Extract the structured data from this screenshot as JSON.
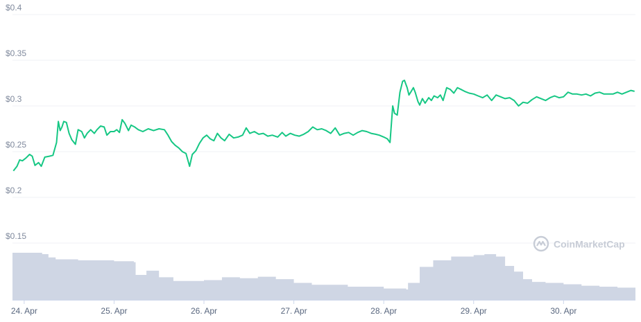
{
  "watermark": {
    "text": "CoinMarketCap"
  },
  "colors": {
    "price_line": "#16c784",
    "volume_fill": "#cfd6e4",
    "grid": "#eff2f5"
  },
  "chart_data": {
    "type": "line",
    "title": "",
    "xlabel": "",
    "ylabel": "",
    "ylim": [
      0.15,
      0.4
    ],
    "y_ticks": [
      {
        "value": 0.4,
        "label": "$0.4"
      },
      {
        "value": 0.35,
        "label": "$0.35"
      },
      {
        "value": 0.3,
        "label": "$0.3"
      },
      {
        "value": 0.25,
        "label": "$0.25"
      },
      {
        "value": 0.2,
        "label": "$0.2"
      },
      {
        "value": 0.15,
        "label": "$0.15"
      }
    ],
    "x_range": [
      23.87,
      30.8
    ],
    "x_ticks": [
      {
        "value": 24,
        "label": "24. Apr"
      },
      {
        "value": 25,
        "label": "25. Apr"
      },
      {
        "value": 26,
        "label": "26. Apr"
      },
      {
        "value": 27,
        "label": "27. Apr"
      },
      {
        "value": 28,
        "label": "28. Apr"
      },
      {
        "value": 29,
        "label": "29. Apr"
      },
      {
        "value": 30,
        "label": "30. Apr"
      }
    ],
    "grid": true,
    "series": [
      {
        "values": [
          [
            23.88,
            0.229
          ],
          [
            23.92,
            0.234
          ],
          [
            23.95,
            0.241
          ],
          [
            23.98,
            0.24
          ],
          [
            24.02,
            0.243
          ],
          [
            24.06,
            0.247
          ],
          [
            24.09,
            0.245
          ],
          [
            24.12,
            0.235
          ],
          [
            24.16,
            0.238
          ],
          [
            24.19,
            0.234
          ],
          [
            24.23,
            0.244
          ],
          [
            24.28,
            0.245
          ],
          [
            24.32,
            0.246
          ],
          [
            24.36,
            0.26
          ],
          [
            24.38,
            0.283
          ],
          [
            24.4,
            0.273
          ],
          [
            24.42,
            0.277
          ],
          [
            24.44,
            0.283
          ],
          [
            24.47,
            0.282
          ],
          [
            24.5,
            0.27
          ],
          [
            24.53,
            0.263
          ],
          [
            24.57,
            0.258
          ],
          [
            24.6,
            0.274
          ],
          [
            24.64,
            0.272
          ],
          [
            24.67,
            0.265
          ],
          [
            24.7,
            0.27
          ],
          [
            24.74,
            0.274
          ],
          [
            24.78,
            0.27
          ],
          [
            24.81,
            0.274
          ],
          [
            24.85,
            0.278
          ],
          [
            24.89,
            0.277
          ],
          [
            24.92,
            0.268
          ],
          [
            24.96,
            0.272
          ],
          [
            25.0,
            0.272
          ],
          [
            25.03,
            0.274
          ],
          [
            25.06,
            0.271
          ],
          [
            25.09,
            0.285
          ],
          [
            25.12,
            0.281
          ],
          [
            25.16,
            0.273
          ],
          [
            25.19,
            0.279
          ],
          [
            25.23,
            0.277
          ],
          [
            25.27,
            0.274
          ],
          [
            25.32,
            0.272
          ],
          [
            25.38,
            0.275
          ],
          [
            25.44,
            0.273
          ],
          [
            25.5,
            0.275
          ],
          [
            25.56,
            0.274
          ],
          [
            25.6,
            0.268
          ],
          [
            25.64,
            0.261
          ],
          [
            25.68,
            0.257
          ],
          [
            25.72,
            0.254
          ],
          [
            25.76,
            0.25
          ],
          [
            25.8,
            0.248
          ],
          [
            25.84,
            0.234
          ],
          [
            25.87,
            0.247
          ],
          [
            25.91,
            0.251
          ],
          [
            25.95,
            0.259
          ],
          [
            25.99,
            0.265
          ],
          [
            26.03,
            0.268
          ],
          [
            26.07,
            0.264
          ],
          [
            26.11,
            0.262
          ],
          [
            26.15,
            0.27
          ],
          [
            26.19,
            0.265
          ],
          [
            26.23,
            0.262
          ],
          [
            26.28,
            0.269
          ],
          [
            26.33,
            0.265
          ],
          [
            26.38,
            0.266
          ],
          [
            26.43,
            0.268
          ],
          [
            26.47,
            0.276
          ],
          [
            26.51,
            0.27
          ],
          [
            26.56,
            0.272
          ],
          [
            26.61,
            0.269
          ],
          [
            26.66,
            0.27
          ],
          [
            26.71,
            0.267
          ],
          [
            26.76,
            0.268
          ],
          [
            26.82,
            0.266
          ],
          [
            26.87,
            0.271
          ],
          [
            26.91,
            0.267
          ],
          [
            26.96,
            0.27
          ],
          [
            27.01,
            0.268
          ],
          [
            27.06,
            0.267
          ],
          [
            27.11,
            0.269
          ],
          [
            27.16,
            0.272
          ],
          [
            27.21,
            0.277
          ],
          [
            27.26,
            0.274
          ],
          [
            27.31,
            0.275
          ],
          [
            27.36,
            0.273
          ],
          [
            27.41,
            0.27
          ],
          [
            27.46,
            0.276
          ],
          [
            27.51,
            0.268
          ],
          [
            27.56,
            0.27
          ],
          [
            27.61,
            0.271
          ],
          [
            27.66,
            0.268
          ],
          [
            27.71,
            0.271
          ],
          [
            27.76,
            0.273
          ],
          [
            27.81,
            0.272
          ],
          [
            27.86,
            0.27
          ],
          [
            27.91,
            0.269
          ],
          [
            27.95,
            0.268
          ],
          [
            28.0,
            0.266
          ],
          [
            28.04,
            0.264
          ],
          [
            28.07,
            0.26
          ],
          [
            28.1,
            0.3
          ],
          [
            28.12,
            0.292
          ],
          [
            28.15,
            0.29
          ],
          [
            28.18,
            0.315
          ],
          [
            28.21,
            0.327
          ],
          [
            28.23,
            0.328
          ],
          [
            28.26,
            0.32
          ],
          [
            28.28,
            0.312
          ],
          [
            28.3,
            0.315
          ],
          [
            28.33,
            0.32
          ],
          [
            28.35,
            0.315
          ],
          [
            28.38,
            0.305
          ],
          [
            28.4,
            0.301
          ],
          [
            28.43,
            0.308
          ],
          [
            28.46,
            0.303
          ],
          [
            28.5,
            0.309
          ],
          [
            28.53,
            0.306
          ],
          [
            28.56,
            0.311
          ],
          [
            28.6,
            0.309
          ],
          [
            28.63,
            0.312
          ],
          [
            28.66,
            0.306
          ],
          [
            28.7,
            0.32
          ],
          [
            28.74,
            0.318
          ],
          [
            28.78,
            0.314
          ],
          [
            28.82,
            0.32
          ],
          [
            28.86,
            0.318
          ],
          [
            28.9,
            0.316
          ],
          [
            28.95,
            0.314
          ],
          [
            29.0,
            0.313
          ],
          [
            29.05,
            0.311
          ],
          [
            29.1,
            0.309
          ],
          [
            29.15,
            0.312
          ],
          [
            29.2,
            0.306
          ],
          [
            29.25,
            0.312
          ],
          [
            29.3,
            0.31
          ],
          [
            29.35,
            0.308
          ],
          [
            29.4,
            0.309
          ],
          [
            29.45,
            0.306
          ],
          [
            29.5,
            0.3
          ],
          [
            29.55,
            0.304
          ],
          [
            29.6,
            0.303
          ],
          [
            29.65,
            0.307
          ],
          [
            29.7,
            0.31
          ],
          [
            29.75,
            0.308
          ],
          [
            29.8,
            0.306
          ],
          [
            29.85,
            0.309
          ],
          [
            29.9,
            0.311
          ],
          [
            29.95,
            0.309
          ],
          [
            30.0,
            0.31
          ],
          [
            30.05,
            0.315
          ],
          [
            30.1,
            0.313
          ],
          [
            30.15,
            0.313
          ],
          [
            30.2,
            0.312
          ],
          [
            30.25,
            0.313
          ],
          [
            30.3,
            0.311
          ],
          [
            30.35,
            0.314
          ],
          [
            30.4,
            0.315
          ],
          [
            30.45,
            0.313
          ],
          [
            30.5,
            0.313
          ],
          [
            30.55,
            0.313
          ],
          [
            30.6,
            0.315
          ],
          [
            30.65,
            0.313
          ],
          [
            30.7,
            0.315
          ],
          [
            30.75,
            0.317
          ],
          [
            30.79,
            0.316
          ]
        ]
      }
    ],
    "volume": [
      [
        23.87,
        1.0
      ],
      [
        24.2,
        0.97
      ],
      [
        24.27,
        0.9
      ],
      [
        24.35,
        0.86
      ],
      [
        24.6,
        0.84
      ],
      [
        25.0,
        0.82
      ],
      [
        25.22,
        0.8
      ],
      [
        25.24,
        0.53
      ],
      [
        25.36,
        0.62
      ],
      [
        25.5,
        0.48
      ],
      [
        25.66,
        0.4
      ],
      [
        26.0,
        0.42
      ],
      [
        26.2,
        0.48
      ],
      [
        26.4,
        0.46
      ],
      [
        26.6,
        0.49
      ],
      [
        26.8,
        0.44
      ],
      [
        27.0,
        0.36
      ],
      [
        27.2,
        0.32
      ],
      [
        27.6,
        0.28
      ],
      [
        28.0,
        0.24
      ],
      [
        28.25,
        0.22
      ],
      [
        28.27,
        0.36
      ],
      [
        28.4,
        0.7
      ],
      [
        28.55,
        0.84
      ],
      [
        28.75,
        0.92
      ],
      [
        29.0,
        0.95
      ],
      [
        29.12,
        0.97
      ],
      [
        29.25,
        0.92
      ],
      [
        29.35,
        0.72
      ],
      [
        29.45,
        0.6
      ],
      [
        29.55,
        0.44
      ],
      [
        29.65,
        0.38
      ],
      [
        29.8,
        0.36
      ],
      [
        30.0,
        0.33
      ],
      [
        30.2,
        0.3
      ],
      [
        30.4,
        0.28
      ],
      [
        30.6,
        0.26
      ],
      [
        30.8,
        0.24
      ]
    ]
  }
}
